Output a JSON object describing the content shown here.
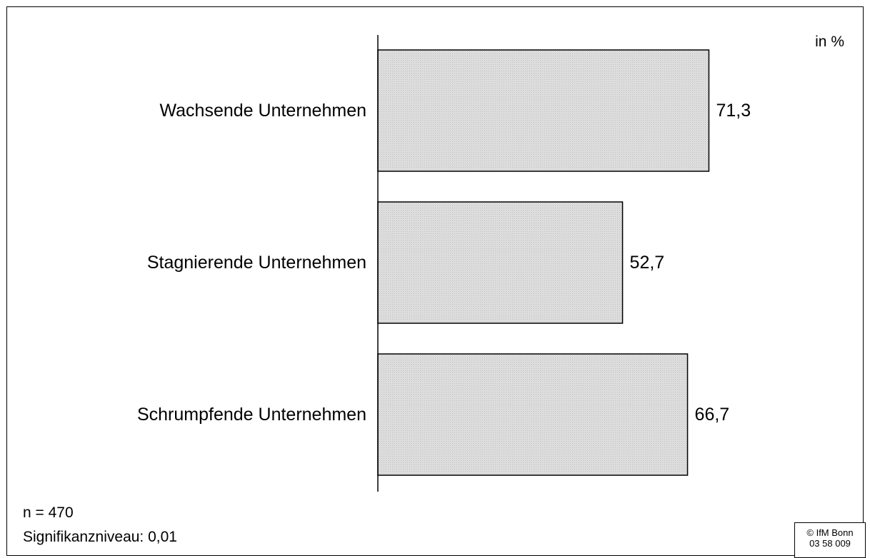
{
  "chart_data": {
    "type": "bar",
    "orientation": "horizontal",
    "unit_label": "in %",
    "categories": [
      "Wachsende Unternehmen",
      "Stagnierende Unternehmen",
      "Schrumpfende Unternehmen"
    ],
    "values": [
      71.3,
      52.7,
      66.7
    ],
    "value_labels": [
      "71,3",
      "52,7",
      "66,7"
    ],
    "xlim": [
      0,
      100
    ],
    "grid": false,
    "bar_color": "#d9d9d9",
    "bar_border_color": "#000000"
  },
  "notes": {
    "sample_size": "n = 470",
    "significance": "Signifikanzniveau: 0,01"
  },
  "copyright": {
    "line1": "© IfM Bonn",
    "line2": "03 58 009"
  }
}
